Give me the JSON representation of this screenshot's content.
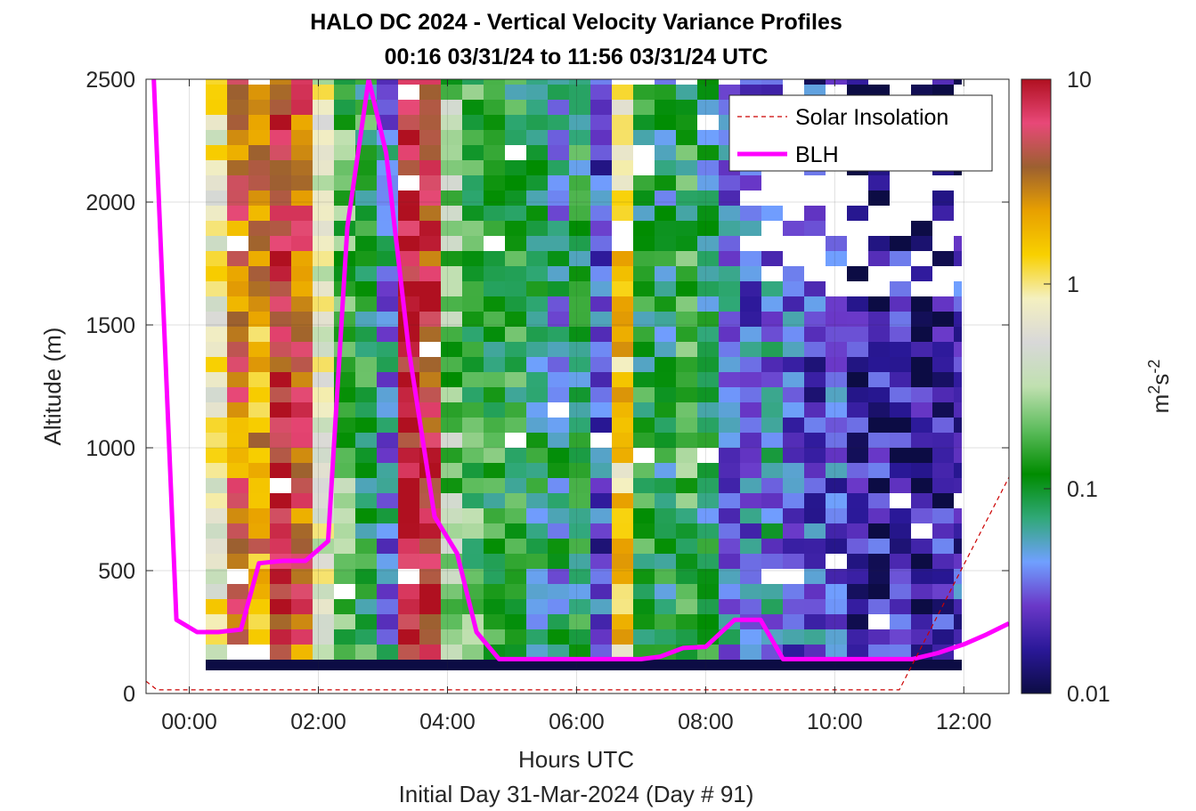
{
  "chart_data": {
    "type": "heatmap",
    "title": "HALO DC 2024 - Vertical Velocity Variance Profiles",
    "subtitle": "00:16 03/31/24 to 11:56 03/31/24  UTC",
    "xlabel": "Hours UTC",
    "xlabel2": "Initial Day 31-Mar-2024 (Day # 91)",
    "ylabel": "Altitude (m)",
    "colorbar_label_base": "m",
    "colorbar_label_sup1": "2",
    "colorbar_label_mid": "s",
    "colorbar_label_sup2": "-2",
    "x_ticks": [
      "00:00",
      "02:00",
      "04:00",
      "06:00",
      "08:00",
      "10:00",
      "12:00"
    ],
    "x_tick_hours": [
      0,
      2,
      4,
      6,
      8,
      10,
      12
    ],
    "y_ticks": [
      "0",
      "500",
      "1000",
      "1500",
      "2000",
      "2500"
    ],
    "y_tick_values": [
      0,
      500,
      1000,
      1500,
      2000,
      2500
    ],
    "xlim_hours": [
      -0.67,
      12.7
    ],
    "ylim": [
      0,
      2500
    ],
    "colorbar_scale": "log",
    "colorbar_range": [
      0.01,
      10
    ],
    "colorbar_ticks": [
      "0.01",
      "0.1",
      "1",
      "10"
    ],
    "colorbar_tick_values": [
      0.01,
      0.1,
      1,
      10
    ],
    "colormap_stops": [
      "#0c0c44",
      "#2a1898",
      "#6a38c8",
      "#70a0ff",
      "#30a878",
      "#008c00",
      "#5cbc5c",
      "#c0e0b0",
      "#d8d8d8",
      "#f4f0c0",
      "#f8d000",
      "#e8a000",
      "#9c6030",
      "#e84878",
      "#b01020"
    ],
    "grid": true,
    "legend": {
      "placement": "top-right",
      "entries": [
        {
          "name": "Solar Insolation",
          "color": "#cc0000",
          "style": "dashed"
        },
        {
          "name": "BLH",
          "color": "#ff00ff",
          "style": "solid"
        }
      ]
    },
    "series": [
      {
        "name": "BLH",
        "color": "#ff00ff",
        "x_hours": [
          -0.55,
          -0.2,
          0.12,
          0.45,
          0.8,
          1.08,
          1.45,
          1.8,
          2.15,
          2.45,
          2.78,
          3.05,
          3.4,
          3.8,
          4.15,
          4.45,
          4.8,
          5.5,
          6.5,
          7.0,
          7.3,
          7.65,
          8.0,
          8.45,
          8.85,
          9.2,
          9.8,
          10.5,
          11.2,
          11.6,
          12.0,
          12.35,
          12.7
        ],
        "y": [
          2500,
          300,
          250,
          250,
          260,
          530,
          540,
          540,
          620,
          1900,
          2500,
          2200,
          1400,
          720,
          570,
          250,
          140,
          140,
          140,
          140,
          150,
          185,
          190,
          300,
          300,
          140,
          140,
          140,
          140,
          165,
          200,
          240,
          285
        ]
      },
      {
        "name": "Solar Insolation",
        "color": "#cc0000",
        "x_hours": [
          -0.67,
          -0.5,
          11.0,
          12.7
        ],
        "y": [
          50,
          15,
          15,
          880
        ]
      }
    ]
  }
}
